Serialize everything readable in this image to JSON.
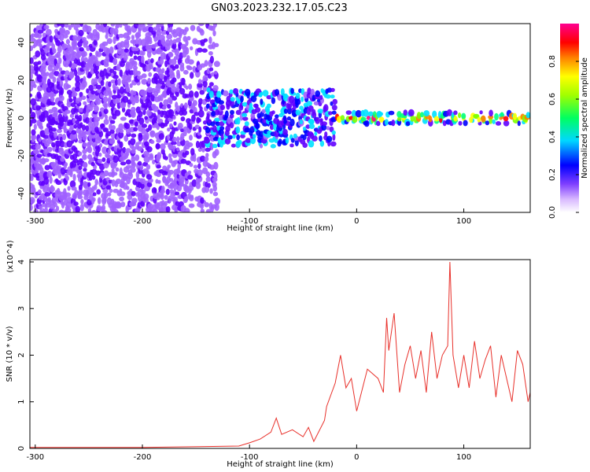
{
  "title": "GN03.2023.232.17.05.C23",
  "chart_data": [
    {
      "type": "heatmap",
      "name": "spectrogram",
      "xlabel": "Height of straight line (km)",
      "ylabel": "Frequency (Hz)",
      "xlim": [
        -305,
        162
      ],
      "ylim": [
        -50,
        50
      ],
      "xticks": [
        -300,
        -200,
        -100,
        0,
        100
      ],
      "yticks": [
        -40,
        -20,
        0,
        20,
        40
      ],
      "colorbar": {
        "label": "Normalized spectral amplitude",
        "range": [
          0,
          1
        ],
        "ticks": [
          0.0,
          0.2,
          0.4,
          0.6,
          0.8
        ],
        "colors": [
          "#ffffff",
          "#a060ff",
          "#6000ff",
          "#0000ff",
          "#00e0ff",
          "#00ff80",
          "#80ff00",
          "#ffff00",
          "#ff8000",
          "#ff0000",
          "#ff0080"
        ]
      },
      "regions": [
        {
          "x_range": [
            -305,
            -130
          ],
          "freq_range": [
            -50,
            50
          ],
          "amplitude": 0.1,
          "pattern": "broadband noise"
        },
        {
          "x_range": [
            -140,
            -20
          ],
          "freq_range": [
            -15,
            15
          ],
          "amplitude": 0.35,
          "pattern": "transition"
        },
        {
          "x_range": [
            -20,
            162
          ],
          "freq_range": [
            -3,
            3
          ],
          "amplitude": 0.95,
          "pattern": "narrow band near 0 Hz"
        }
      ]
    },
    {
      "type": "line",
      "name": "snr",
      "xlabel": "Height of straight line (km)",
      "ylabel": "SNR (10 * v/v)",
      "y_multiplier": "(x10^4)",
      "xlim": [
        -305,
        162
      ],
      "ylim": [
        0,
        4.05
      ],
      "xticks": [
        -300,
        -200,
        -100,
        0,
        100
      ],
      "yticks": [
        0,
        1,
        2,
        3,
        4
      ],
      "color": "#e8302a",
      "series": [
        {
          "x": [
            -305,
            -200,
            -110,
            -100,
            -90,
            -80,
            -75,
            -70,
            -60,
            -50,
            -45,
            -40,
            -30,
            -28,
            -20,
            -15,
            -10,
            -5,
            0,
            10,
            20,
            25,
            28,
            30,
            35,
            40,
            45,
            50,
            55,
            60,
            65,
            70,
            75,
            80,
            85,
            87,
            90,
            95,
            100,
            105,
            110,
            115,
            120,
            125,
            130,
            135,
            140,
            145,
            150,
            155,
            160,
            162
          ],
          "y": [
            0.02,
            0.02,
            0.05,
            0.12,
            0.2,
            0.35,
            0.65,
            0.3,
            0.4,
            0.25,
            0.45,
            0.15,
            0.6,
            0.9,
            1.4,
            2.0,
            1.3,
            1.5,
            0.8,
            1.7,
            1.5,
            1.2,
            2.8,
            2.1,
            2.9,
            1.2,
            1.8,
            2.2,
            1.5,
            2.1,
            1.2,
            2.5,
            1.5,
            2.0,
            2.2,
            4.0,
            2.0,
            1.3,
            2.0,
            1.3,
            2.3,
            1.5,
            1.9,
            2.2,
            1.1,
            2.0,
            1.5,
            1.0,
            2.1,
            1.8,
            1.0,
            1.2
          ]
        }
      ]
    }
  ]
}
